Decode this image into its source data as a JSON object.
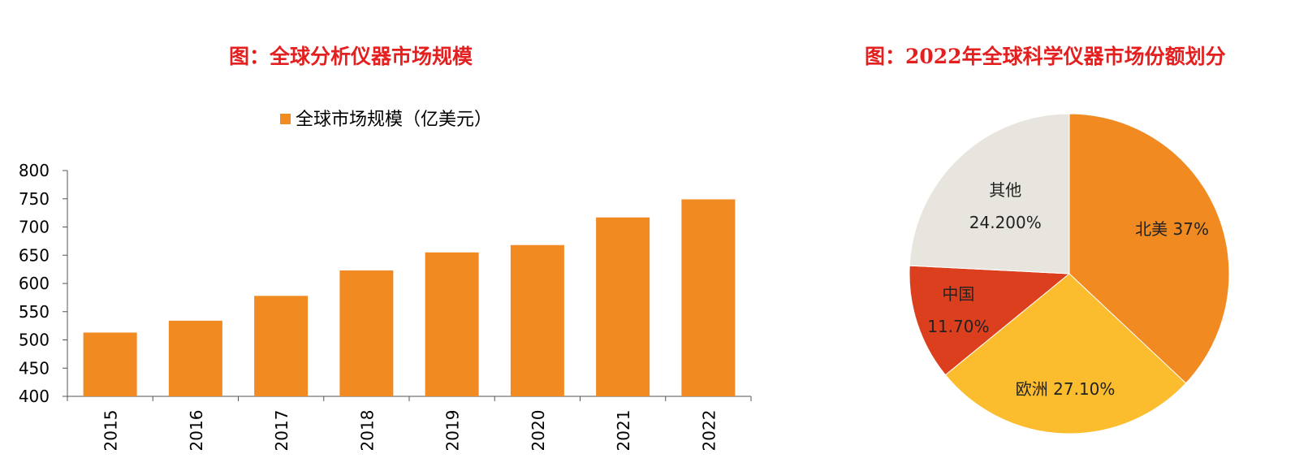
{
  "chart_data": [
    {
      "type": "bar",
      "title": "图：全球分析仪器市场规模",
      "categories": [
        "2015",
        "2016",
        "2017",
        "2018",
        "2019",
        "2020",
        "2021",
        "2022"
      ],
      "series": [
        {
          "name": "全球市场规模（亿美元）",
          "values": [
            513,
            534,
            578,
            623,
            655,
            668,
            717,
            749
          ]
        }
      ],
      "ylim": [
        400,
        800
      ],
      "yticks": [
        "400",
        "450",
        "500",
        "550",
        "600",
        "650",
        "700",
        "750",
        "800"
      ],
      "legend_position": "top-center",
      "grid": false,
      "color": "#f28a22"
    },
    {
      "type": "pie",
      "title": "图：2022年全球科学仪器市场份额划分",
      "slices": [
        {
          "name": "北美",
          "value": 37.0,
          "label": "37%",
          "color": "#f28a22"
        },
        {
          "name": "欧洲",
          "value": 27.1,
          "label": "27.10%",
          "color": "#fbbd2e"
        },
        {
          "name": "中国",
          "value": 11.7,
          "label": "11.70%",
          "color": "#dc3f1e"
        },
        {
          "name": "其他",
          "value": 24.2,
          "label": "24.200%",
          "color": "#e7e5de"
        }
      ]
    }
  ]
}
